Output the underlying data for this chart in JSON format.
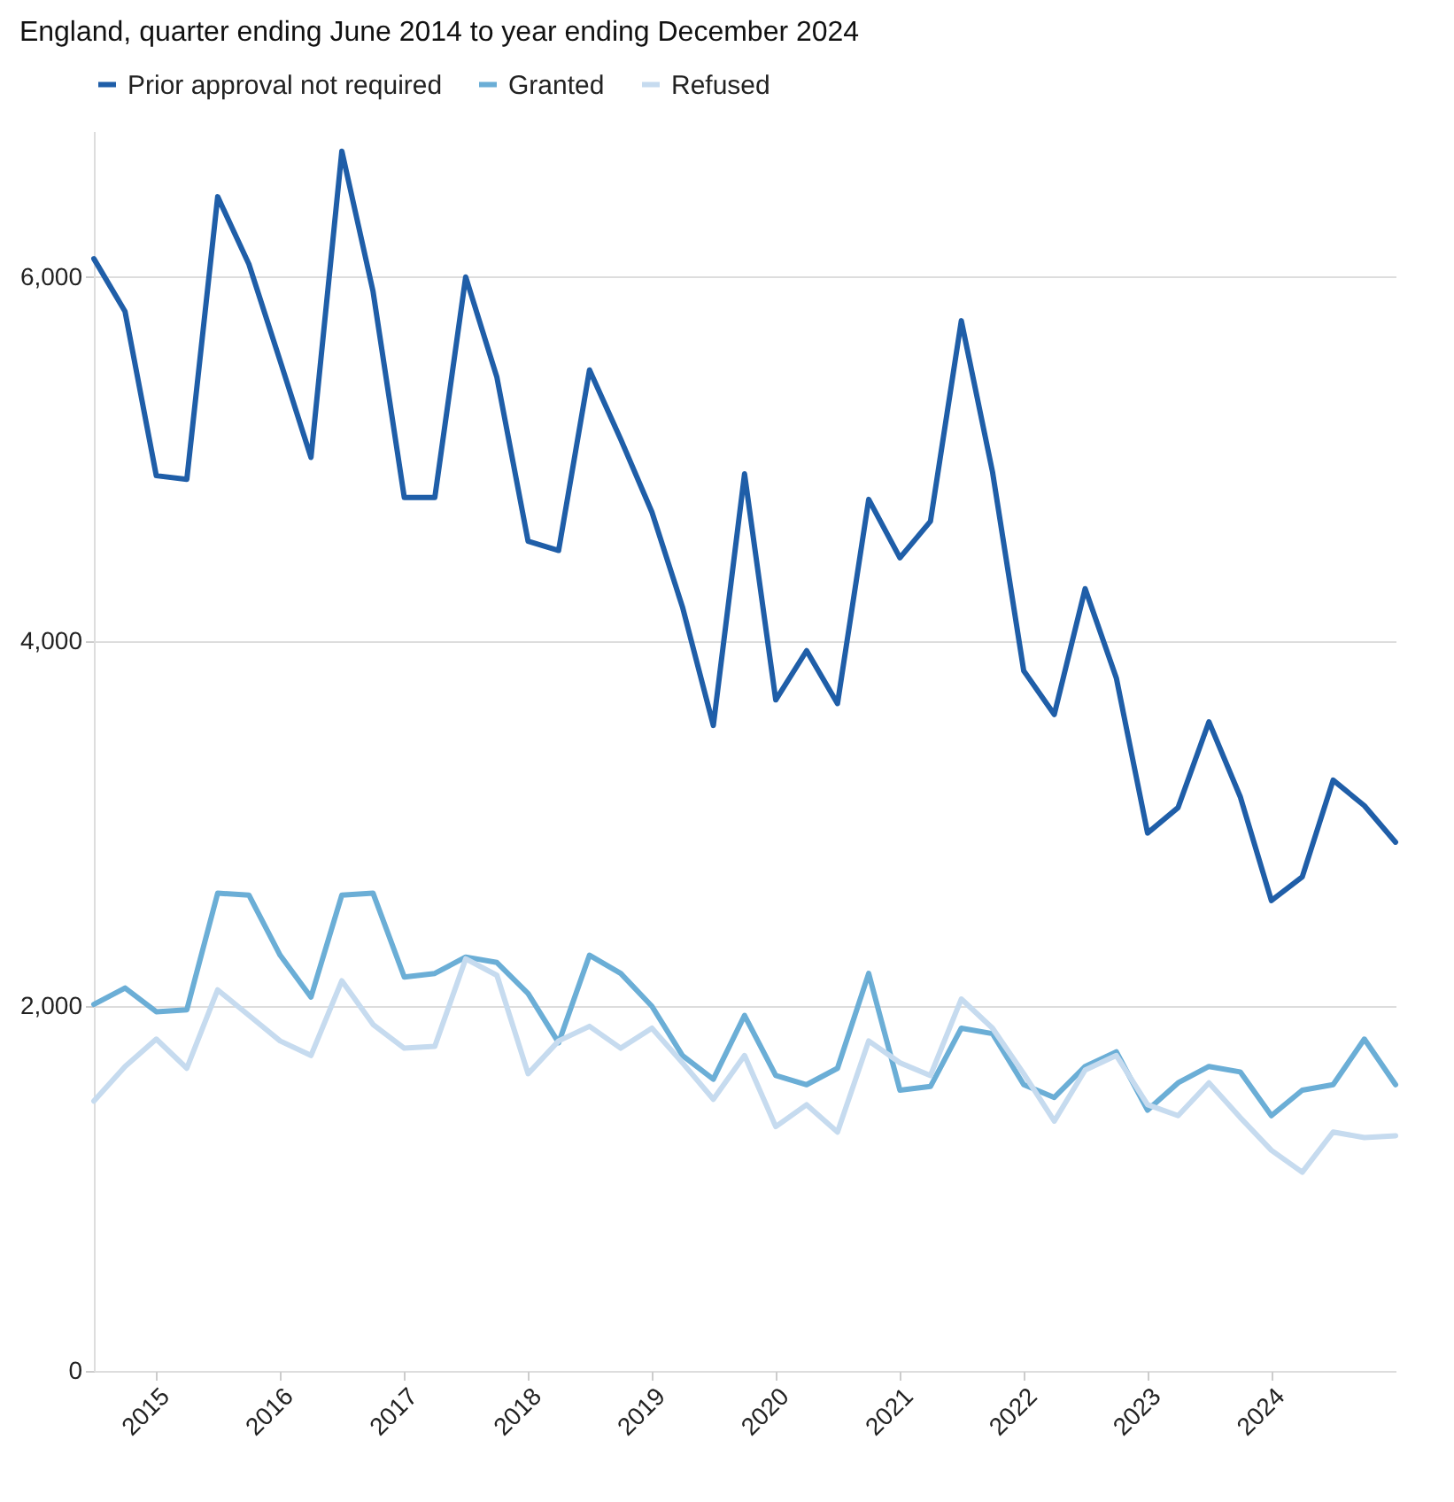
{
  "chart_data": {
    "type": "line",
    "title": "England, quarter ending June 2014 to year ending December 2024",
    "x": [
      "2014-07",
      "2014-10",
      "2015-01",
      "2015-04",
      "2015-07",
      "2015-10",
      "2016-01",
      "2016-04",
      "2016-07",
      "2016-10",
      "2017-01",
      "2017-04",
      "2017-07",
      "2017-10",
      "2018-01",
      "2018-04",
      "2018-07",
      "2018-10",
      "2019-01",
      "2019-04",
      "2019-07",
      "2019-10",
      "2020-01",
      "2020-04",
      "2020-07",
      "2020-10",
      "2021-01",
      "2021-04",
      "2021-07",
      "2021-10",
      "2022-01",
      "2022-04",
      "2022-07",
      "2022-10",
      "2023-01",
      "2023-04",
      "2023-07",
      "2023-10",
      "2024-01",
      "2024-04",
      "2024-07",
      "2024-10",
      "2025-01"
    ],
    "series": [
      {
        "name": "Prior approval not required",
        "color": "#1f5ea8",
        "values": [
          6100,
          5810,
          4910,
          4890,
          6440,
          6070,
          5540,
          5010,
          6690,
          5920,
          4790,
          4790,
          6000,
          5450,
          4550,
          4500,
          5490,
          5110,
          4710,
          4190,
          3540,
          4920,
          3680,
          3950,
          3660,
          4780,
          4460,
          4660,
          5760,
          4930,
          3840,
          3600,
          4290,
          3800,
          2950,
          3090,
          3560,
          3150,
          2580,
          2710,
          3240,
          3100,
          2900
        ]
      },
      {
        "name": "Granted",
        "color": "#6baed6",
        "values": [
          2010,
          2100,
          1970,
          1980,
          2620,
          2610,
          2280,
          2050,
          2610,
          2620,
          2160,
          2180,
          2270,
          2240,
          2070,
          1800,
          2280,
          2180,
          2000,
          1730,
          1600,
          1950,
          1620,
          1570,
          1660,
          2180,
          1540,
          1560,
          1880,
          1850,
          1570,
          1500,
          1670,
          1750,
          1430,
          1580,
          1670,
          1640,
          1400,
          1540,
          1570,
          1820,
          1570
        ]
      },
      {
        "name": "Refused",
        "color": "#c6dbef",
        "values": [
          1480,
          1670,
          1820,
          1660,
          2090,
          1950,
          1810,
          1730,
          2140,
          1900,
          1770,
          1780,
          2260,
          2170,
          1630,
          1810,
          1890,
          1770,
          1880,
          1690,
          1490,
          1730,
          1340,
          1460,
          1310,
          1810,
          1690,
          1620,
          2040,
          1880,
          1630,
          1370,
          1650,
          1730,
          1460,
          1400,
          1580,
          1390,
          1210,
          1090,
          1310,
          1280,
          1290
        ]
      }
    ],
    "xlim": [
      "2014-07",
      "2025-01"
    ],
    "xticks": [
      "2015",
      "2016",
      "2017",
      "2018",
      "2019",
      "2020",
      "2021",
      "2022",
      "2023",
      "2024"
    ],
    "ylim": [
      0,
      6800
    ],
    "yticks": [
      0,
      {
        "value": 2000,
        "label": "2,000"
      },
      {
        "value": 4000,
        "label": "4,000"
      },
      {
        "value": 6000,
        "label": "6,000"
      }
    ],
    "grid": "y",
    "legend": "top"
  }
}
